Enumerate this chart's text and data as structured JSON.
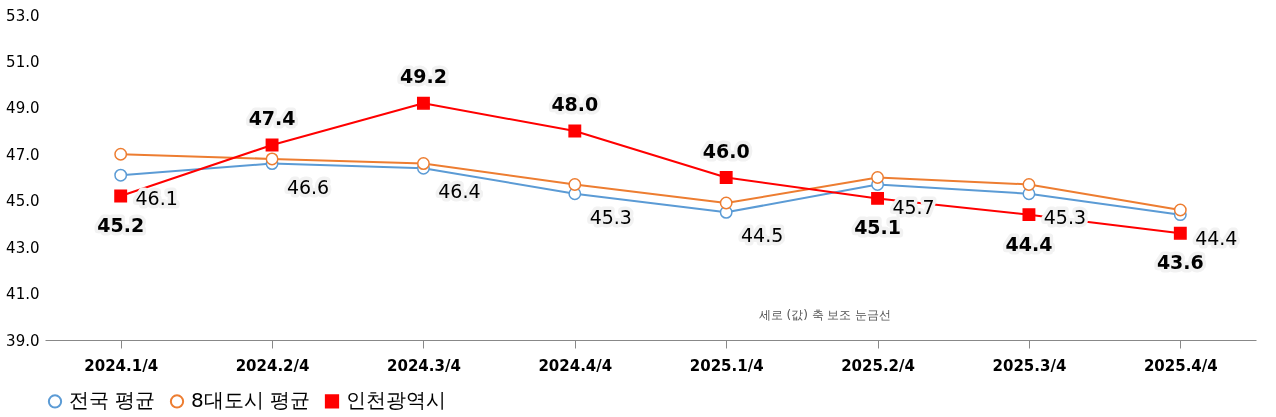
{
  "chart_data": {
    "type": "line",
    "categories": [
      "2024.1/4",
      "2024.2/4",
      "2024.3/4",
      "2024.4/4",
      "2025.1/4",
      "2025.2/4",
      "2025.3/4",
      "2025.4/4"
    ],
    "ylim": [
      39,
      53
    ],
    "yticks": [
      {
        "value": 39,
        "label": "39.0"
      },
      {
        "value": 41,
        "label": "41.0"
      },
      {
        "value": 43,
        "label": "43.0"
      },
      {
        "value": 45,
        "label": "45.0"
      },
      {
        "value": 47,
        "label": "47.0"
      },
      {
        "value": 49,
        "label": "49.0"
      },
      {
        "value": 51,
        "label": "51.0"
      },
      {
        "value": 53,
        "label": "53.0"
      }
    ],
    "grid": false,
    "legend": "bottom",
    "annotations": [
      "세로 (값) 축 보조 눈금선"
    ],
    "series": [
      {
        "name": "전국 평균",
        "color": "#5b9bd5",
        "marker": "circle",
        "values": [
          46.1,
          46.6,
          46.4,
          45.3,
          44.5,
          45.7,
          45.3,
          44.4
        ],
        "value_labels": [
          "46.1",
          "46.6",
          "46.4",
          "45.3",
          "44.5",
          "45.7",
          "45.3",
          "44.4"
        ]
      },
      {
        "name": "8대도시 평균",
        "color": "#ed7d31",
        "marker": "circle",
        "values": [
          47.0,
          46.8,
          46.6,
          45.7,
          44.9,
          46.0,
          45.7,
          44.6
        ]
      },
      {
        "name": "인천광역시",
        "color": "#ff0000",
        "marker": "square",
        "values": [
          45.2,
          47.4,
          49.2,
          48.0,
          46.0,
          45.1,
          44.4,
          43.6
        ],
        "value_labels": [
          "45.2",
          "47.4",
          "49.2",
          "48.0",
          "46.0",
          "45.1",
          "44.4",
          "43.6"
        ]
      }
    ]
  }
}
